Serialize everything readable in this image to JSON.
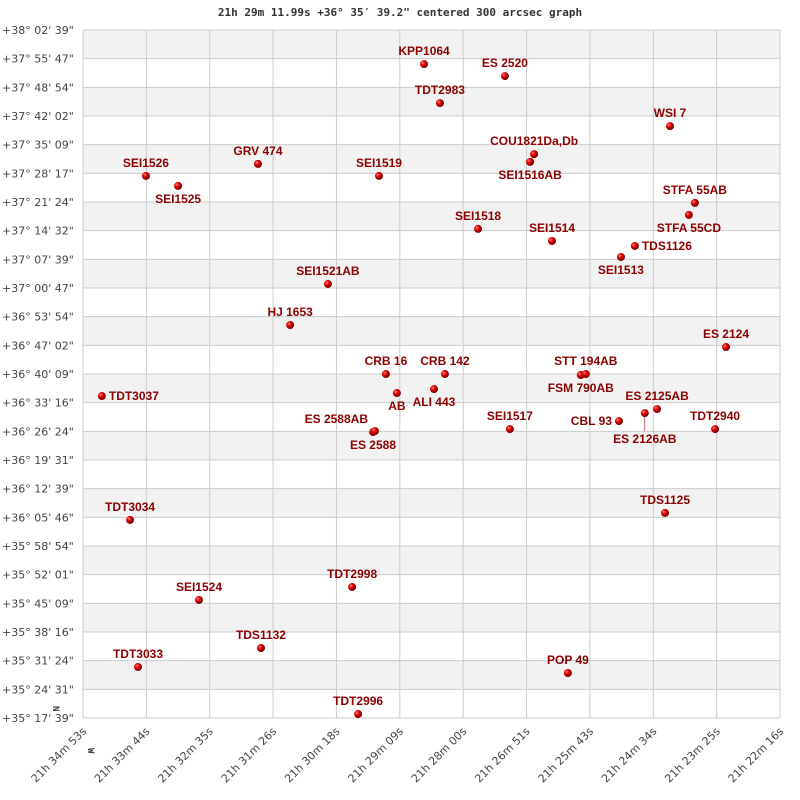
{
  "title": "21h 29m 11.99s +36° 35′ 39.2\" centered 300 arcsec graph",
  "chart_data": {
    "type": "scatter",
    "title": "21h 29m 11.99s +36° 35′ 39.2\" centered 300 arcsec graph",
    "xlabel": "",
    "ylabel": "",
    "x_unit": "RA (hours)",
    "y_unit": "Dec (degrees)",
    "xlim": [
      21.58139,
      21.37111
    ],
    "ylim": [
      35.29417,
      38.04417
    ],
    "grid": true,
    "compass": {
      "north": "N",
      "west": "W"
    },
    "colors": {
      "point": "#dd0000",
      "label": "#8b0000",
      "band": "#f2f2f2",
      "grid": "#cccccc"
    },
    "x_tick_labels": [
      "21h 34m 53s",
      "21h 33m 44s",
      "21h 32m 35s",
      "21h 31m 26s",
      "21h 30m 18s",
      "21h 29m 09s",
      "21h 28m 00s",
      "21h 26m 51s",
      "21h 25m 43s",
      "21h 24m 34s",
      "21h 23m 25s",
      "21h 22m 16s"
    ],
    "y_tick_labels": [
      "+38° 02' 39\"",
      "+37° 55' 47\"",
      "+37° 48' 54\"",
      "+37° 42' 02\"",
      "+37° 35' 09\"",
      "+37° 28' 17\"",
      "+37° 21' 24\"",
      "+37° 14' 32\"",
      "+37° 07' 39\"",
      "+37° 00' 47\"",
      "+36° 53' 54\"",
      "+36° 47' 02\"",
      "+36° 40' 09\"",
      "+36° 33' 16\"",
      "+36° 26' 24\"",
      "+36° 19' 31\"",
      "+36° 12' 39\"",
      "+36° 05' 46\"",
      "+35° 58' 54\"",
      "+35° 52' 01\"",
      "+35° 45' 09\"",
      "+35° 38' 16\"",
      "+35° 31' 24\"",
      "+35° 24' 31\"",
      "+35° 17' 39\""
    ],
    "points": [
      {
        "name": "KPP1064",
        "ra": 21.4785,
        "dec": 37.908
      },
      {
        "name": "ES 2520",
        "ra": 21.4541,
        "dec": 37.86
      },
      {
        "name": "TDT2983",
        "ra": 21.4737,
        "dec": 37.752
      },
      {
        "name": "WSI   7",
        "ra": 21.4043,
        "dec": 37.66
      },
      {
        "name": "COU1821Da,Db",
        "ra": 21.4453,
        "dec": 37.548
      },
      {
        "name": "SEI1516AB",
        "ra": 21.4465,
        "dec": 37.517
      },
      {
        "name": "SEI1526",
        "ra": 21.5624,
        "dec": 37.461
      },
      {
        "name": "SEI1525",
        "ra": 21.5527,
        "dec": 37.421
      },
      {
        "name": "GRV 474",
        "ra": 21.5286,
        "dec": 37.509
      },
      {
        "name": "SEI1519",
        "ra": 21.4921,
        "dec": 37.461
      },
      {
        "name": "STFA 55AB",
        "ra": 21.3968,
        "dec": 37.353
      },
      {
        "name": "STFA 55CD",
        "ra": 21.3986,
        "dec": 37.305
      },
      {
        "name": "SEI1518",
        "ra": 21.4622,
        "dec": 37.249
      },
      {
        "name": "SEI1514",
        "ra": 21.4399,
        "dec": 37.201
      },
      {
        "name": "TDS1126",
        "ra": 21.4149,
        "dec": 37.181
      },
      {
        "name": "SEI1513",
        "ra": 21.4191,
        "dec": 37.137
      },
      {
        "name": "SEI1521AB",
        "ra": 21.5075,
        "dec": 37.029
      },
      {
        "name": "HJ 1653",
        "ra": 21.5189,
        "dec": 36.865
      },
      {
        "name": "ES 2124",
        "ra": 21.3874,
        "dec": 36.777
      },
      {
        "name": "CRB  16",
        "ra": 21.49,
        "dec": 36.669
      },
      {
        "name": "CRB 142",
        "ra": 21.4722,
        "dec": 36.669
      },
      {
        "name": "AB",
        "ra": 21.4867,
        "dec": 36.593
      },
      {
        "name": "ALI 443",
        "ra": 21.4755,
        "dec": 36.609
      },
      {
        "name": "TDT3037",
        "ra": 21.5757,
        "dec": 36.581
      },
      {
        "name": "FSM 790AB",
        "ra": 21.4312,
        "dec": 36.665
      },
      {
        "name": "STT 194AB",
        "ra": 21.4297,
        "dec": 36.669
      },
      {
        "name": "ES 2125AB",
        "ra": 21.4082,
        "dec": 36.529
      },
      {
        "name": "ES 2126AB",
        "ra": 21.4119,
        "dec": 36.513
      },
      {
        "name": "CBL  93",
        "ra": 21.4197,
        "dec": 36.481
      },
      {
        "name": "TDT2940",
        "ra": 21.3907,
        "dec": 36.449
      },
      {
        "name": "ES  2588",
        "ra": 21.4939,
        "dec": 36.437
      },
      {
        "name": "ES  2588AB",
        "ra": 21.4933,
        "dec": 36.441
      },
      {
        "name": "SEI1517",
        "ra": 21.4526,
        "dec": 36.449
      },
      {
        "name": "TDS1125",
        "ra": 21.4058,
        "dec": 36.114
      },
      {
        "name": "TDT3034",
        "ra": 21.5672,
        "dec": 36.086
      },
      {
        "name": "TDT2998",
        "ra": 21.5002,
        "dec": 35.818
      },
      {
        "name": "SEI1524",
        "ra": 21.5464,
        "dec": 35.766
      },
      {
        "name": "TDS1132",
        "ra": 21.5277,
        "dec": 35.574
      },
      {
        "name": "TDT3033",
        "ra": 21.5648,
        "dec": 35.498
      },
      {
        "name": "POP  49",
        "ra": 21.4351,
        "dec": 35.474
      },
      {
        "name": "TDT2996",
        "ra": 21.4984,
        "dec": 35.31
      }
    ]
  }
}
